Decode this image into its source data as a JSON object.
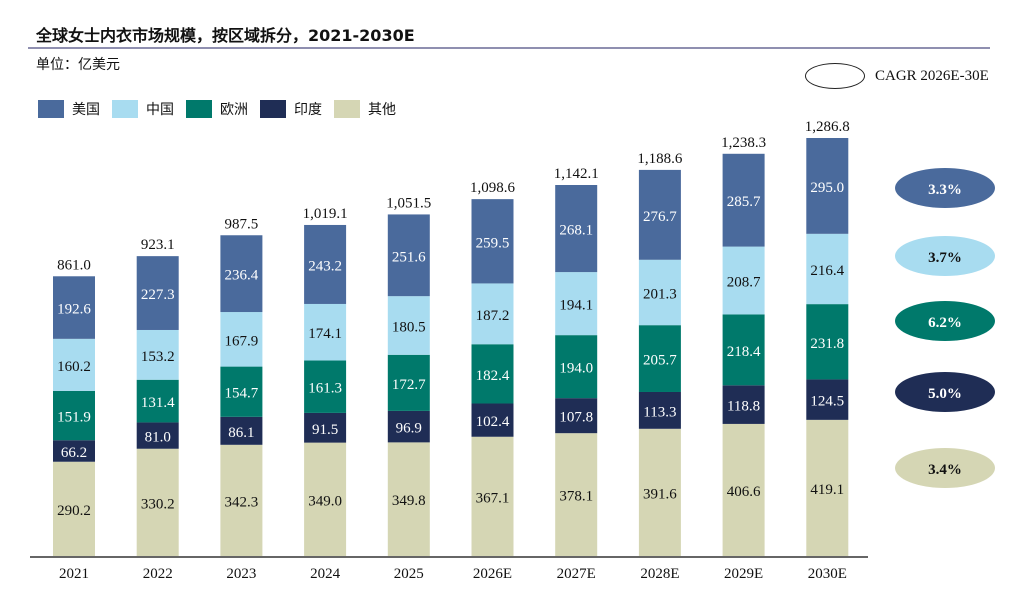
{
  "title": "全球女士内衣市场规模，按区域拆分，2021-2030E",
  "unit": "单位：亿美元",
  "cagr_legend": "CAGR  2026E-30E",
  "chart_data": {
    "type": "bar",
    "stacked": true,
    "title": "全球女士内衣市场规模，按区域拆分，2021-2030E",
    "ylabel": "单位：亿美元",
    "categories": [
      "2021",
      "2022",
      "2023",
      "2024",
      "2025",
      "2026E",
      "2027E",
      "2028E",
      "2029E",
      "2030E"
    ],
    "series": [
      {
        "name": "其他",
        "color": "#d5d6b4",
        "values": [
          290.2,
          330.2,
          342.3,
          349.0,
          349.8,
          367.1,
          378.1,
          391.6,
          406.6,
          419.1
        ],
        "cagr": "3.4%"
      },
      {
        "name": "印度",
        "color": "#1f2d55",
        "values": [
          66.2,
          81.0,
          86.1,
          91.5,
          96.9,
          102.4,
          107.8,
          113.3,
          118.8,
          124.5
        ],
        "cagr": "5.0%"
      },
      {
        "name": "欧洲",
        "color": "#00796b",
        "values": [
          151.9,
          131.4,
          154.7,
          161.3,
          172.7,
          182.4,
          194.0,
          205.7,
          218.4,
          231.8
        ],
        "cagr": "6.2%"
      },
      {
        "name": "中国",
        "color": "#a8dcf0",
        "values": [
          160.2,
          153.2,
          167.9,
          174.1,
          180.5,
          187.2,
          194.1,
          201.3,
          208.7,
          216.4
        ],
        "cagr": "3.7%"
      },
      {
        "name": "美国",
        "color": "#4a6a9c",
        "values": [
          192.6,
          227.3,
          236.4,
          243.2,
          251.6,
          259.5,
          268.1,
          276.7,
          285.7,
          295.0
        ],
        "cagr": "3.3%"
      }
    ],
    "totals": [
      "861.0",
      "923.1",
      "987.5",
      "1,019.1",
      "1,051.5",
      "1,098.6",
      "1,142.1",
      "1,188.6",
      "1,238.3",
      "1,286.8"
    ],
    "legend_order": [
      "美国",
      "中国",
      "欧洲",
      "印度",
      "其他"
    ],
    "legend_placement": "top-left",
    "grid": false,
    "ylim": [
      0,
      1300
    ]
  }
}
